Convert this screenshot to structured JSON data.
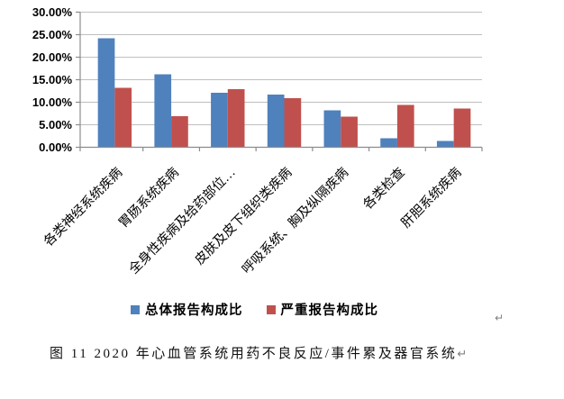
{
  "document": {
    "caption": "图 11  2020 年心血管系统用药不良反应/事件累及器官系统",
    "paragraph_mark": "↵"
  },
  "chart_data": {
    "type": "bar",
    "title": "",
    "xlabel": "",
    "ylabel": "",
    "categories": [
      "各类神经系统疾病",
      "胃肠系统疾病",
      "全身性疾病及给药部位…",
      "皮肤及皮下组织类疾病",
      "呼吸系统、胸及纵隔疾病",
      "各类检查",
      "肝胆系统疾病"
    ],
    "series": [
      {
        "name": "总体报告构成比",
        "color": "#4F81BD",
        "values": [
          24.2,
          16.2,
          12.1,
          11.7,
          8.2,
          2.0,
          1.4
        ]
      },
      {
        "name": "严重报告构成比",
        "color": "#C0504D",
        "values": [
          13.2,
          6.9,
          12.9,
          10.9,
          6.8,
          9.4,
          8.6
        ]
      }
    ],
    "ylim": [
      0,
      30
    ],
    "ytick_step": 5,
    "ytick_labels": [
      "0.00%",
      "5.00%",
      "10.00%",
      "15.00%",
      "20.00%",
      "25.00%",
      "30.00%"
    ],
    "grid": true,
    "legend_position": "bottom",
    "gridline_color": "#BFBFBF",
    "axis_color": "#8C8C8C"
  }
}
